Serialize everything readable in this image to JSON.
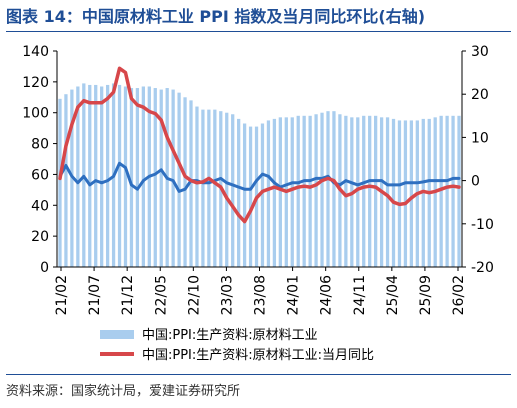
{
  "title": "图表 14：中国原材料工业 PPI 指数及当月同比环比(右轴)",
  "source": "资料来源：国家统计局，爱建证券研究所",
  "colors": {
    "title": "#1f4e96",
    "bar": "#a9cdee",
    "yoy_line": "#d7474a",
    "mom_line": "#2e6fc0",
    "axis": "#000000"
  },
  "chart_data": {
    "type": "bar",
    "x_tick_labels": [
      "21/02",
      "21/07",
      "21/12",
      "22/05",
      "22/10",
      "23/03",
      "23/08",
      "24/01",
      "24/06",
      "24/11",
      "25/04",
      "25/09",
      "26/02"
    ],
    "left_axis": {
      "ylim": [
        0,
        140
      ],
      "ticks": [
        0,
        20,
        40,
        60,
        80,
        100,
        120,
        140
      ]
    },
    "right_axis": {
      "ylim": [
        -20,
        30
      ],
      "ticks": [
        -20,
        -10,
        0,
        10,
        20,
        30
      ]
    },
    "grid": false,
    "legend_position": "bottom",
    "series": [
      {
        "name": "中国:PPI:生产资料:原材料工业",
        "kind": "bar",
        "axis": "left",
        "values": [
          109,
          112,
          115,
          117,
          119,
          118,
          118,
          117,
          118,
          119,
          118,
          117,
          116,
          116,
          117,
          117,
          116,
          115,
          116,
          115,
          113,
          110,
          108,
          104,
          102,
          102,
          102,
          101,
          100,
          99,
          96,
          93,
          91,
          91,
          93,
          95,
          96,
          97,
          97,
          97,
          98,
          98,
          98,
          99,
          100,
          101,
          101,
          99,
          98,
          97,
          97,
          98,
          98,
          98,
          97,
          97,
          96,
          95,
          95,
          95,
          95,
          96,
          96,
          97,
          98,
          98,
          98,
          98
        ]
      },
      {
        "name": "中国:PPI:生产资料:原材料工业:当月同比",
        "kind": "line",
        "axis": "right",
        "values": [
          0.5,
          8,
          13,
          17,
          18.5,
          18,
          18,
          18,
          19,
          20.5,
          26,
          25,
          19,
          17.5,
          17,
          16,
          15.5,
          14,
          10,
          7,
          4,
          1,
          0,
          -0.5,
          -0.3,
          0.5,
          -0.5,
          -1.5,
          -4,
          -6,
          -8,
          -9.5,
          -7,
          -4,
          -2.5,
          -2,
          -1.5,
          -2,
          -2.5,
          -2,
          -1.5,
          -1.3,
          -1.5,
          -1,
          0,
          0.5,
          0,
          -2,
          -3.5,
          -3,
          -2,
          -1.5,
          -1.3,
          -1.5,
          -2.5,
          -3.5,
          -5,
          -5.5,
          -5.3,
          -4,
          -3,
          -2.5,
          -2.8,
          -2.5,
          -2,
          -1.5,
          -1.3,
          -1.5
        ]
      },
      {
        "name": "当月环比",
        "kind": "line",
        "axis": "right",
        "values": [
          1,
          3.5,
          1,
          -0.5,
          1,
          -1,
          0,
          -0.5,
          0,
          1,
          4,
          3,
          -1,
          -2,
          0,
          1,
          1.5,
          2.5,
          0.5,
          0,
          -2.5,
          -2,
          0,
          0,
          -0.5,
          -0.5,
          0,
          0.5,
          -0.5,
          -1,
          -1.5,
          -2,
          -2,
          0,
          1.5,
          1,
          -0.5,
          -1.5,
          -1,
          -0.5,
          -0.5,
          0,
          0,
          0.5,
          0.5,
          1,
          -0.5,
          -1,
          0,
          -0.5,
          -1,
          -0.5,
          0,
          0,
          0,
          -1,
          -1,
          -1,
          -0.5,
          -0.5,
          -0.5,
          -0.3,
          0,
          0,
          0,
          0,
          0.5,
          0.5
        ]
      }
    ]
  }
}
